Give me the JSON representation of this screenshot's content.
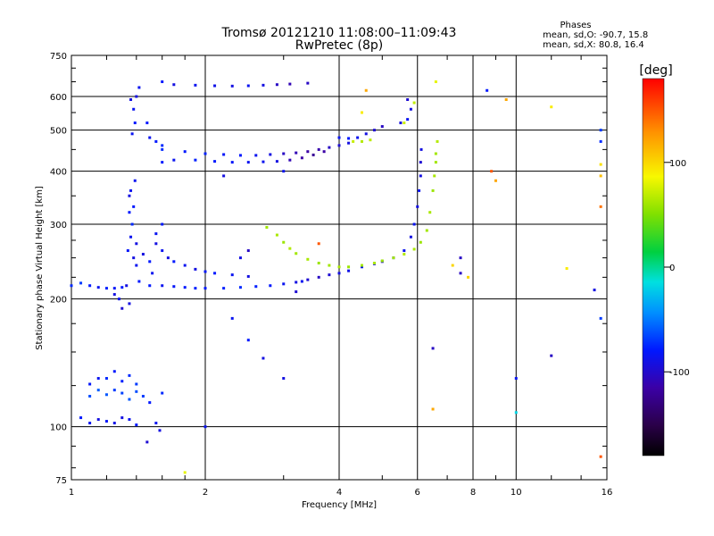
{
  "title": "Tromsø 20121210 11:08:00–11:09:43",
  "subtitle": "RwPretec (8p)",
  "stats": {
    "heading": "Phases",
    "line1": "mean, sd,O: -90.7, 15.8",
    "line2": "mean, sd,X:  80.8, 16.4"
  },
  "colorbar": {
    "label": "[deg]",
    "ticks": [
      "100",
      "0",
      "-100"
    ],
    "tick_values": [
      100,
      0,
      -100
    ],
    "range": [
      -180,
      180
    ]
  },
  "chart_data": {
    "type": "scatter",
    "xlabel": "Frequency [MHz]",
    "ylabel": "Stationary phase Virtual Height [km]",
    "xscale": "log",
    "yscale": "log",
    "xlim": [
      1,
      16
    ],
    "ylim": [
      75,
      750
    ],
    "xticks": [
      1,
      2,
      4,
      6,
      8,
      10,
      16
    ],
    "xtick_labels": [
      "1",
      "2",
      "4",
      "6",
      "8",
      "10",
      "16"
    ],
    "yticks": [
      75,
      100,
      200,
      300,
      400,
      500,
      600,
      750
    ],
    "ytick_labels": [
      "75",
      "100",
      "200",
      "300",
      "400",
      "500",
      "600",
      "750"
    ],
    "grid": true,
    "series": [
      {
        "values": [
          [
            1.0,
            215,
            -85
          ],
          [
            1.05,
            218,
            -80
          ],
          [
            1.1,
            215,
            -90
          ],
          [
            1.15,
            213,
            -95
          ],
          [
            1.2,
            212,
            -88
          ],
          [
            1.25,
            212,
            -92
          ],
          [
            1.3,
            213,
            -90
          ],
          [
            1.33,
            215,
            -100
          ],
          [
            1.36,
            360,
            -95
          ],
          [
            1.38,
            330,
            -90
          ],
          [
            1.37,
            300,
            -85
          ],
          [
            1.4,
            270,
            -100
          ],
          [
            1.4,
            240,
            -95
          ],
          [
            1.42,
            220,
            -90
          ],
          [
            1.38,
            250,
            -100
          ],
          [
            1.36,
            280,
            -95
          ],
          [
            1.35,
            320,
            -90
          ],
          [
            1.35,
            350,
            -100
          ],
          [
            1.39,
            380,
            -95
          ],
          [
            1.34,
            260,
            -92
          ],
          [
            1.35,
            195,
            -100
          ],
          [
            1.3,
            190,
            -105
          ],
          [
            1.28,
            200,
            -95
          ],
          [
            1.25,
            205,
            -100
          ],
          [
            1.5,
            215,
            -90
          ],
          [
            1.6,
            215,
            -95
          ],
          [
            1.7,
            214,
            -92
          ],
          [
            1.8,
            213,
            -90
          ],
          [
            1.9,
            212,
            -88
          ],
          [
            2.0,
            212,
            -90
          ],
          [
            2.2,
            212,
            -88
          ],
          [
            2.4,
            213,
            -85
          ],
          [
            2.6,
            214,
            -88
          ],
          [
            2.8,
            215,
            -90
          ],
          [
            3.0,
            217,
            -95
          ],
          [
            3.2,
            219,
            -100
          ],
          [
            3.4,
            222,
            -105
          ],
          [
            3.6,
            225,
            -110
          ],
          [
            3.8,
            228,
            -105
          ],
          [
            4.0,
            230,
            -100
          ],
          [
            4.2,
            233,
            -98
          ],
          [
            4.5,
            238,
            -95
          ],
          [
            4.8,
            242,
            -100
          ],
          [
            5.0,
            245,
            -105
          ],
          [
            5.3,
            250,
            -100
          ],
          [
            5.6,
            260,
            -95
          ],
          [
            5.8,
            280,
            -100
          ],
          [
            5.9,
            300,
            -95
          ],
          [
            6.0,
            330,
            -100
          ],
          [
            6.05,
            360,
            -95
          ],
          [
            6.1,
            390,
            -100
          ],
          [
            6.1,
            420,
            -105
          ],
          [
            6.12,
            450,
            -100
          ],
          [
            1.55,
            270,
            -100
          ],
          [
            1.6,
            260,
            -95
          ],
          [
            1.65,
            250,
            -100
          ],
          [
            1.7,
            245,
            -90
          ],
          [
            1.8,
            240,
            -95
          ],
          [
            1.9,
            235,
            -100
          ],
          [
            2.0,
            232,
            -92
          ],
          [
            2.1,
            230,
            -90
          ],
          [
            2.3,
            228,
            -95
          ],
          [
            2.5,
            226,
            -100
          ],
          [
            1.5,
            245,
            -90
          ],
          [
            1.55,
            285,
            -95
          ],
          [
            1.6,
            300,
            -90
          ],
          [
            1.52,
            230,
            -95
          ],
          [
            1.45,
            255,
            -100
          ],
          [
            1.6,
            450,
            -85
          ],
          [
            1.8,
            445,
            -90
          ],
          [
            2.0,
            440,
            -88
          ],
          [
            2.2,
            438,
            -92
          ],
          [
            2.4,
            436,
            -90
          ],
          [
            2.6,
            436,
            -95
          ],
          [
            2.8,
            438,
            -100
          ],
          [
            3.0,
            440,
            -110
          ],
          [
            3.2,
            442,
            -115
          ],
          [
            3.4,
            445,
            -120
          ],
          [
            3.6,
            450,
            -118
          ],
          [
            3.8,
            455,
            -110
          ],
          [
            4.0,
            460,
            -105
          ],
          [
            4.2,
            466,
            -100
          ],
          [
            1.6,
            420,
            -90
          ],
          [
            1.7,
            425,
            -95
          ],
          [
            1.9,
            425,
            -88
          ],
          [
            2.1,
            422,
            -90
          ],
          [
            2.3,
            420,
            -92
          ],
          [
            2.5,
            420,
            -95
          ],
          [
            2.7,
            421,
            -95
          ],
          [
            2.9,
            422,
            -100
          ],
          [
            3.1,
            425,
            -115
          ],
          [
            3.3,
            430,
            -120
          ],
          [
            3.5,
            437,
            -125
          ],
          [
            3.7,
            445,
            -120
          ],
          [
            1.48,
            520,
            -90
          ],
          [
            1.5,
            480,
            -95
          ],
          [
            1.55,
            470,
            -90
          ],
          [
            1.6,
            460,
            -85
          ],
          [
            1.38,
            560,
            -95
          ],
          [
            1.4,
            600,
            -100
          ],
          [
            1.42,
            630,
            -95
          ],
          [
            1.39,
            520,
            -90
          ],
          [
            1.36,
            590,
            -100
          ],
          [
            1.37,
            490,
            -95
          ],
          [
            1.7,
            640,
            -100
          ],
          [
            1.9,
            638,
            -95
          ],
          [
            2.1,
            636,
            -98
          ],
          [
            2.3,
            635,
            -100
          ],
          [
            2.5,
            636,
            -95
          ],
          [
            2.7,
            638,
            -100
          ],
          [
            2.9,
            640,
            -110
          ],
          [
            3.1,
            642,
            -115
          ],
          [
            3.4,
            645,
            -110
          ],
          [
            1.6,
            650,
            -90
          ],
          [
            4.0,
            480,
            -95
          ],
          [
            4.2,
            478,
            -90
          ],
          [
            4.4,
            480,
            -95
          ],
          [
            4.6,
            490,
            -100
          ],
          [
            4.8,
            500,
            -105
          ],
          [
            5.0,
            510,
            -110
          ],
          [
            5.5,
            520,
            -100
          ],
          [
            5.7,
            530,
            -95
          ],
          [
            5.8,
            560,
            -100
          ],
          [
            5.7,
            590,
            -105
          ],
          [
            1.05,
            105,
            -90
          ],
          [
            1.1,
            102,
            -95
          ],
          [
            1.15,
            104,
            -100
          ],
          [
            1.2,
            103,
            -92
          ],
          [
            1.25,
            102,
            -98
          ],
          [
            1.3,
            105,
            -100
          ],
          [
            1.35,
            104,
            -95
          ],
          [
            1.4,
            101,
            -90
          ],
          [
            1.1,
            118,
            -75
          ],
          [
            1.15,
            122,
            -70
          ],
          [
            1.2,
            119,
            -72
          ],
          [
            1.25,
            122,
            -80
          ],
          [
            1.3,
            120,
            -78
          ],
          [
            1.35,
            116,
            -72
          ],
          [
            1.4,
            121,
            -75
          ],
          [
            1.45,
            118,
            -80
          ],
          [
            1.2,
            130,
            -85
          ],
          [
            1.25,
            135,
            -90
          ],
          [
            1.3,
            128,
            -88
          ],
          [
            1.35,
            132,
            -85
          ],
          [
            1.4,
            126,
            -80
          ],
          [
            1.1,
            126,
            -92
          ],
          [
            1.15,
            130,
            -95
          ],
          [
            1.5,
            114,
            -90
          ],
          [
            1.6,
            120,
            -85
          ],
          [
            1.55,
            102,
            -95
          ],
          [
            1.48,
            92,
            -105
          ],
          [
            1.58,
            98,
            -100
          ],
          [
            2.75,
            295,
            60
          ],
          [
            2.9,
            283,
            62
          ],
          [
            3.0,
            272,
            58
          ],
          [
            3.1,
            263,
            65
          ],
          [
            3.2,
            256,
            60
          ],
          [
            3.4,
            248,
            62
          ],
          [
            3.6,
            243,
            58
          ],
          [
            3.8,
            240,
            60
          ],
          [
            4.0,
            238,
            62
          ],
          [
            4.2,
            238,
            58
          ],
          [
            4.5,
            240,
            60
          ],
          [
            4.8,
            243,
            62
          ],
          [
            5.0,
            246,
            58
          ],
          [
            5.3,
            250,
            60
          ],
          [
            5.6,
            255,
            65
          ],
          [
            5.9,
            262,
            62
          ],
          [
            6.1,
            272,
            58
          ],
          [
            6.3,
            290,
            60
          ],
          [
            6.4,
            320,
            62
          ],
          [
            6.5,
            360,
            58
          ],
          [
            6.6,
            420,
            60
          ],
          [
            6.65,
            470,
            65
          ],
          [
            6.6,
            440,
            60
          ],
          [
            6.55,
            390,
            62
          ],
          [
            4.3,
            470,
            70
          ],
          [
            4.5,
            470,
            65
          ],
          [
            4.7,
            474,
            68
          ],
          [
            5.6,
            520,
            72
          ],
          [
            5.9,
            580,
            68
          ],
          [
            6.6,
            650,
            80
          ],
          [
            2.5,
            260,
            -110
          ],
          [
            3.6,
            270,
            150
          ],
          [
            2.3,
            180,
            -95
          ],
          [
            2.5,
            160,
            -90
          ],
          [
            2.7,
            145,
            -100
          ],
          [
            3.2,
            208,
            -105
          ],
          [
            3.3,
            220,
            -95
          ],
          [
            6.5,
            110,
            120
          ],
          [
            6.5,
            153,
            -110
          ],
          [
            10.0,
            130,
            -95
          ],
          [
            10.0,
            108,
            -20
          ],
          [
            12.0,
            147,
            -110
          ],
          [
            13.0,
            236,
            90
          ],
          [
            15.0,
            210,
            -100
          ],
          [
            15.5,
            390,
            110
          ],
          [
            15.5,
            415,
            95
          ],
          [
            15.5,
            470,
            -85
          ],
          [
            15.5,
            500,
            -80
          ],
          [
            15.5,
            330,
            140
          ],
          [
            15.5,
            180,
            -80
          ],
          [
            15.5,
            85,
            150
          ],
          [
            8.6,
            620,
            -90
          ],
          [
            8.8,
            400,
            150
          ],
          [
            9.0,
            380,
            120
          ],
          [
            9.5,
            590,
            120
          ],
          [
            12.0,
            567,
            90
          ],
          [
            7.5,
            250,
            -110
          ],
          [
            7.5,
            230,
            -110
          ],
          [
            7.2,
            240,
            100
          ],
          [
            7.8,
            225,
            100
          ],
          [
            3.0,
            400,
            -95
          ],
          [
            2.2,
            390,
            -100
          ],
          [
            2.0,
            100,
            -95
          ],
          [
            2.4,
            250,
            -100
          ],
          [
            3.0,
            130,
            -100
          ],
          [
            1.8,
            78,
            80
          ],
          [
            4.5,
            550,
            90
          ],
          [
            4.6,
            620,
            120
          ]
        ]
      }
    ]
  }
}
